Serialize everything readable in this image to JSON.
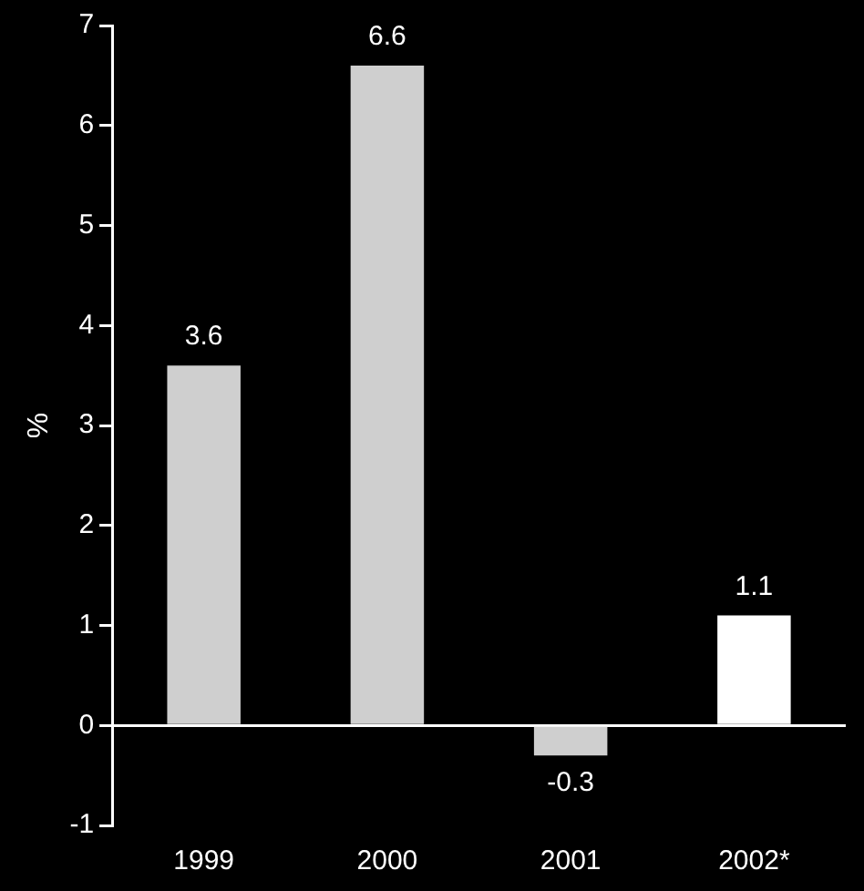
{
  "chart_data": {
    "type": "bar",
    "ylabel": "%",
    "categories": [
      "1999",
      "2000",
      "2001",
      "2002*"
    ],
    "values": [
      3.6,
      6.6,
      -0.3,
      1.1
    ],
    "colors": [
      "#cfcfcf",
      "#cfcfcf",
      "#cfcfcf",
      "#ffffff"
    ],
    "ylim": [
      -1,
      7
    ],
    "yticks": [
      -1,
      0,
      1,
      2,
      3,
      4,
      5,
      6,
      7
    ],
    "data_labels": true,
    "legend": false
  }
}
